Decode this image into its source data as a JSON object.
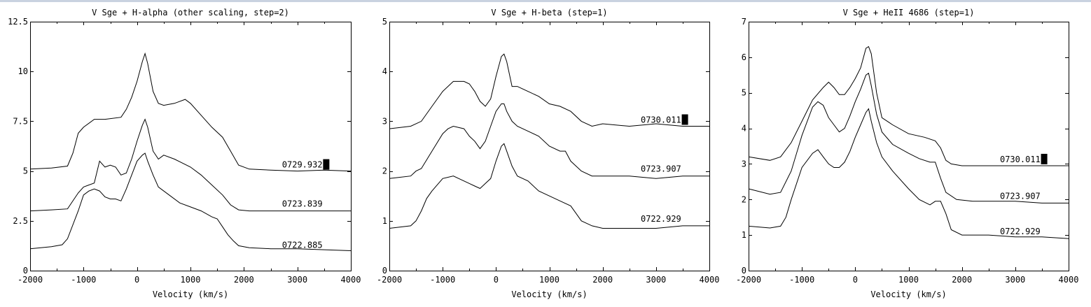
{
  "chart_data": [
    {
      "type": "line",
      "title": "V Sge + H-alpha (other scaling, step=2)",
      "xlabel": "Velocity (km/s)",
      "ylabel": "",
      "xlim": [
        -2000,
        4000
      ],
      "ylim": [
        0,
        12.5
      ],
      "xticks": [
        -2000,
        -1000,
        0,
        1000,
        2000,
        3000,
        4000
      ],
      "yticks": [
        0,
        2.5,
        5,
        7.5,
        10,
        12.5
      ],
      "ytick_labels": [
        "0",
        "2.5",
        "5",
        "7.5",
        "10",
        "12.5"
      ],
      "grid": false,
      "series": [
        {
          "name": "0729.932",
          "x": [
            -2000,
            -1600,
            -1300,
            -1200,
            -1100,
            -1000,
            -800,
            -600,
            -300,
            -200,
            -100,
            0,
            100,
            150,
            200,
            300,
            400,
            500,
            700,
            900,
            1000,
            1200,
            1400,
            1600,
            1750,
            1900,
            2100,
            2500,
            3000,
            3500,
            4000
          ],
          "y": [
            5.1,
            5.15,
            5.25,
            5.9,
            6.9,
            7.2,
            7.6,
            7.6,
            7.7,
            8.1,
            8.7,
            9.5,
            10.5,
            10.9,
            10.4,
            9.0,
            8.4,
            8.3,
            8.4,
            8.6,
            8.4,
            7.8,
            7.2,
            6.7,
            6.0,
            5.3,
            5.1,
            5.05,
            5.0,
            5.05,
            5.0
          ]
        },
        {
          "name": "0723.839",
          "x": [
            -2000,
            -1600,
            -1300,
            -1100,
            -1000,
            -900,
            -800,
            -700,
            -600,
            -500,
            -400,
            -300,
            -200,
            -100,
            0,
            100,
            150,
            200,
            300,
            400,
            500,
            700,
            1000,
            1200,
            1400,
            1600,
            1750,
            1900,
            2100,
            2500,
            3000,
            3500,
            4000
          ],
          "y": [
            3.0,
            3.05,
            3.1,
            3.9,
            4.2,
            4.3,
            4.4,
            5.5,
            5.2,
            5.3,
            5.2,
            4.8,
            4.9,
            5.6,
            6.5,
            7.3,
            7.6,
            7.2,
            6.0,
            5.6,
            5.8,
            5.6,
            5.2,
            4.8,
            4.3,
            3.8,
            3.3,
            3.05,
            3.0,
            3.0,
            3.0,
            3.0,
            3.0
          ]
        },
        {
          "name": "0722.885",
          "x": [
            -2000,
            -1600,
            -1400,
            -1300,
            -1100,
            -1000,
            -900,
            -800,
            -700,
            -600,
            -500,
            -400,
            -300,
            -200,
            -100,
            0,
            100,
            150,
            200,
            300,
            400,
            600,
            800,
            1000,
            1200,
            1400,
            1500,
            1600,
            1700,
            1800,
            1900,
            2100,
            2500,
            3000,
            3500,
            4000
          ],
          "y": [
            1.1,
            1.2,
            1.3,
            1.6,
            3.0,
            3.8,
            4.0,
            4.1,
            4.0,
            3.7,
            3.6,
            3.6,
            3.5,
            4.1,
            4.8,
            5.5,
            5.8,
            5.9,
            5.5,
            4.8,
            4.2,
            3.8,
            3.4,
            3.2,
            3.0,
            2.7,
            2.6,
            2.2,
            1.8,
            1.5,
            1.25,
            1.15,
            1.1,
            1.1,
            1.05,
            1.0
          ]
        }
      ]
    },
    {
      "type": "line",
      "title": "V Sge + H-beta (step=1)",
      "xlabel": "Velocity (km/s)",
      "ylabel": "",
      "xlim": [
        -2000,
        4000
      ],
      "ylim": [
        0,
        5
      ],
      "xticks": [
        -2000,
        -1000,
        0,
        1000,
        2000,
        3000,
        4000
      ],
      "yticks": [
        0,
        1,
        2,
        3,
        4,
        5
      ],
      "ytick_labels": [
        "0",
        "1",
        "2",
        "3",
        "4",
        "5"
      ],
      "grid": false,
      "series": [
        {
          "name": "0730.011",
          "x": [
            -2000,
            -1600,
            -1400,
            -1200,
            -1000,
            -800,
            -600,
            -500,
            -400,
            -300,
            -200,
            -100,
            0,
            100,
            150,
            200,
            300,
            400,
            600,
            800,
            1000,
            1200,
            1400,
            1600,
            1800,
            2000,
            2500,
            3000,
            3500,
            4000
          ],
          "y": [
            2.85,
            2.9,
            3.0,
            3.3,
            3.6,
            3.8,
            3.8,
            3.75,
            3.6,
            3.4,
            3.3,
            3.45,
            3.9,
            4.3,
            4.35,
            4.2,
            3.7,
            3.7,
            3.6,
            3.5,
            3.35,
            3.3,
            3.2,
            3.0,
            2.9,
            2.95,
            2.9,
            2.95,
            2.9,
            2.9
          ]
        },
        {
          "name": "0723.907",
          "x": [
            -2000,
            -1600,
            -1500,
            -1400,
            -1200,
            -1000,
            -900,
            -800,
            -600,
            -500,
            -400,
            -300,
            -200,
            -100,
            0,
            100,
            150,
            200,
            300,
            400,
            600,
            800,
            1000,
            1200,
            1300,
            1400,
            1500,
            1600,
            1800,
            2000,
            2500,
            3000,
            3500,
            4000
          ],
          "y": [
            1.85,
            1.9,
            2.0,
            2.05,
            2.4,
            2.75,
            2.85,
            2.9,
            2.85,
            2.7,
            2.6,
            2.45,
            2.6,
            2.9,
            3.2,
            3.35,
            3.35,
            3.2,
            3.0,
            2.9,
            2.8,
            2.7,
            2.5,
            2.4,
            2.4,
            2.2,
            2.1,
            2.0,
            1.9,
            1.9,
            1.9,
            1.85,
            1.9,
            1.9
          ]
        },
        {
          "name": "0722.929",
          "x": [
            -2000,
            -1600,
            -1500,
            -1400,
            -1300,
            -1200,
            -1000,
            -800,
            -600,
            -500,
            -400,
            -300,
            -200,
            -100,
            0,
            100,
            150,
            200,
            300,
            400,
            600,
            800,
            1000,
            1200,
            1400,
            1500,
            1600,
            1800,
            2000,
            2500,
            3000,
            3500,
            4000
          ],
          "y": [
            0.85,
            0.9,
            1.0,
            1.2,
            1.45,
            1.6,
            1.85,
            1.9,
            1.8,
            1.75,
            1.7,
            1.65,
            1.75,
            1.85,
            2.2,
            2.5,
            2.55,
            2.4,
            2.1,
            1.9,
            1.8,
            1.6,
            1.5,
            1.4,
            1.3,
            1.15,
            1.0,
            0.9,
            0.85,
            0.85,
            0.85,
            0.9,
            0.9
          ]
        }
      ]
    },
    {
      "type": "line",
      "title": "V Sge + HeII 4686 (step=1)",
      "xlabel": "Velocity (km/s)",
      "ylabel": "",
      "xlim": [
        -2000,
        4000
      ],
      "ylim": [
        0,
        7
      ],
      "xticks": [
        -2000,
        -1000,
        0,
        1000,
        2000,
        3000,
        4000
      ],
      "yticks": [
        0,
        1,
        2,
        3,
        4,
        5,
        6,
        7
      ],
      "ytick_labels": [
        "0",
        "1",
        "2",
        "3",
        "4",
        "5",
        "6",
        "7"
      ],
      "grid": false,
      "series": [
        {
          "name": "0730.011",
          "x": [
            -2000,
            -1600,
            -1400,
            -1200,
            -1000,
            -800,
            -600,
            -500,
            -400,
            -300,
            -200,
            -100,
            0,
            100,
            200,
            250,
            300,
            400,
            500,
            700,
            1000,
            1300,
            1500,
            1600,
            1700,
            1800,
            2000,
            2500,
            3000,
            3500,
            4000
          ],
          "y": [
            3.2,
            3.1,
            3.2,
            3.6,
            4.2,
            4.8,
            5.15,
            5.3,
            5.15,
            4.95,
            4.95,
            5.15,
            5.4,
            5.7,
            6.25,
            6.3,
            6.1,
            5.0,
            4.3,
            4.1,
            3.85,
            3.75,
            3.65,
            3.45,
            3.1,
            3.0,
            2.95,
            2.95,
            2.95,
            2.95,
            2.95
          ]
        },
        {
          "name": "0723.907",
          "x": [
            -2000,
            -1600,
            -1400,
            -1200,
            -1000,
            -800,
            -700,
            -600,
            -500,
            -400,
            -300,
            -200,
            -100,
            0,
            100,
            200,
            250,
            300,
            400,
            500,
            700,
            1000,
            1200,
            1400,
            1500,
            1600,
            1700,
            1900,
            2200,
            2500,
            3000,
            3500,
            4000
          ],
          "y": [
            2.3,
            2.15,
            2.2,
            2.8,
            3.8,
            4.6,
            4.75,
            4.65,
            4.3,
            4.1,
            3.9,
            4.0,
            4.35,
            4.75,
            5.1,
            5.5,
            5.55,
            5.2,
            4.4,
            3.9,
            3.55,
            3.3,
            3.15,
            3.05,
            3.05,
            2.6,
            2.2,
            2.0,
            1.95,
            1.95,
            1.95,
            1.9,
            1.9
          ]
        },
        {
          "name": "0722.929",
          "x": [
            -2000,
            -1600,
            -1400,
            -1300,
            -1200,
            -1000,
            -800,
            -700,
            -600,
            -500,
            -400,
            -300,
            -200,
            -100,
            0,
            100,
            200,
            250,
            300,
            400,
            500,
            700,
            1000,
            1200,
            1400,
            1500,
            1600,
            1700,
            1800,
            2000,
            2500,
            3000,
            3500,
            4000
          ],
          "y": [
            1.25,
            1.2,
            1.25,
            1.5,
            2.0,
            2.9,
            3.3,
            3.4,
            3.2,
            3.0,
            2.9,
            2.9,
            3.05,
            3.35,
            3.75,
            4.1,
            4.45,
            4.55,
            4.2,
            3.6,
            3.2,
            2.8,
            2.3,
            2.0,
            1.85,
            1.95,
            1.95,
            1.6,
            1.15,
            1.0,
            1.0,
            0.95,
            0.95,
            0.9
          ]
        }
      ]
    }
  ]
}
